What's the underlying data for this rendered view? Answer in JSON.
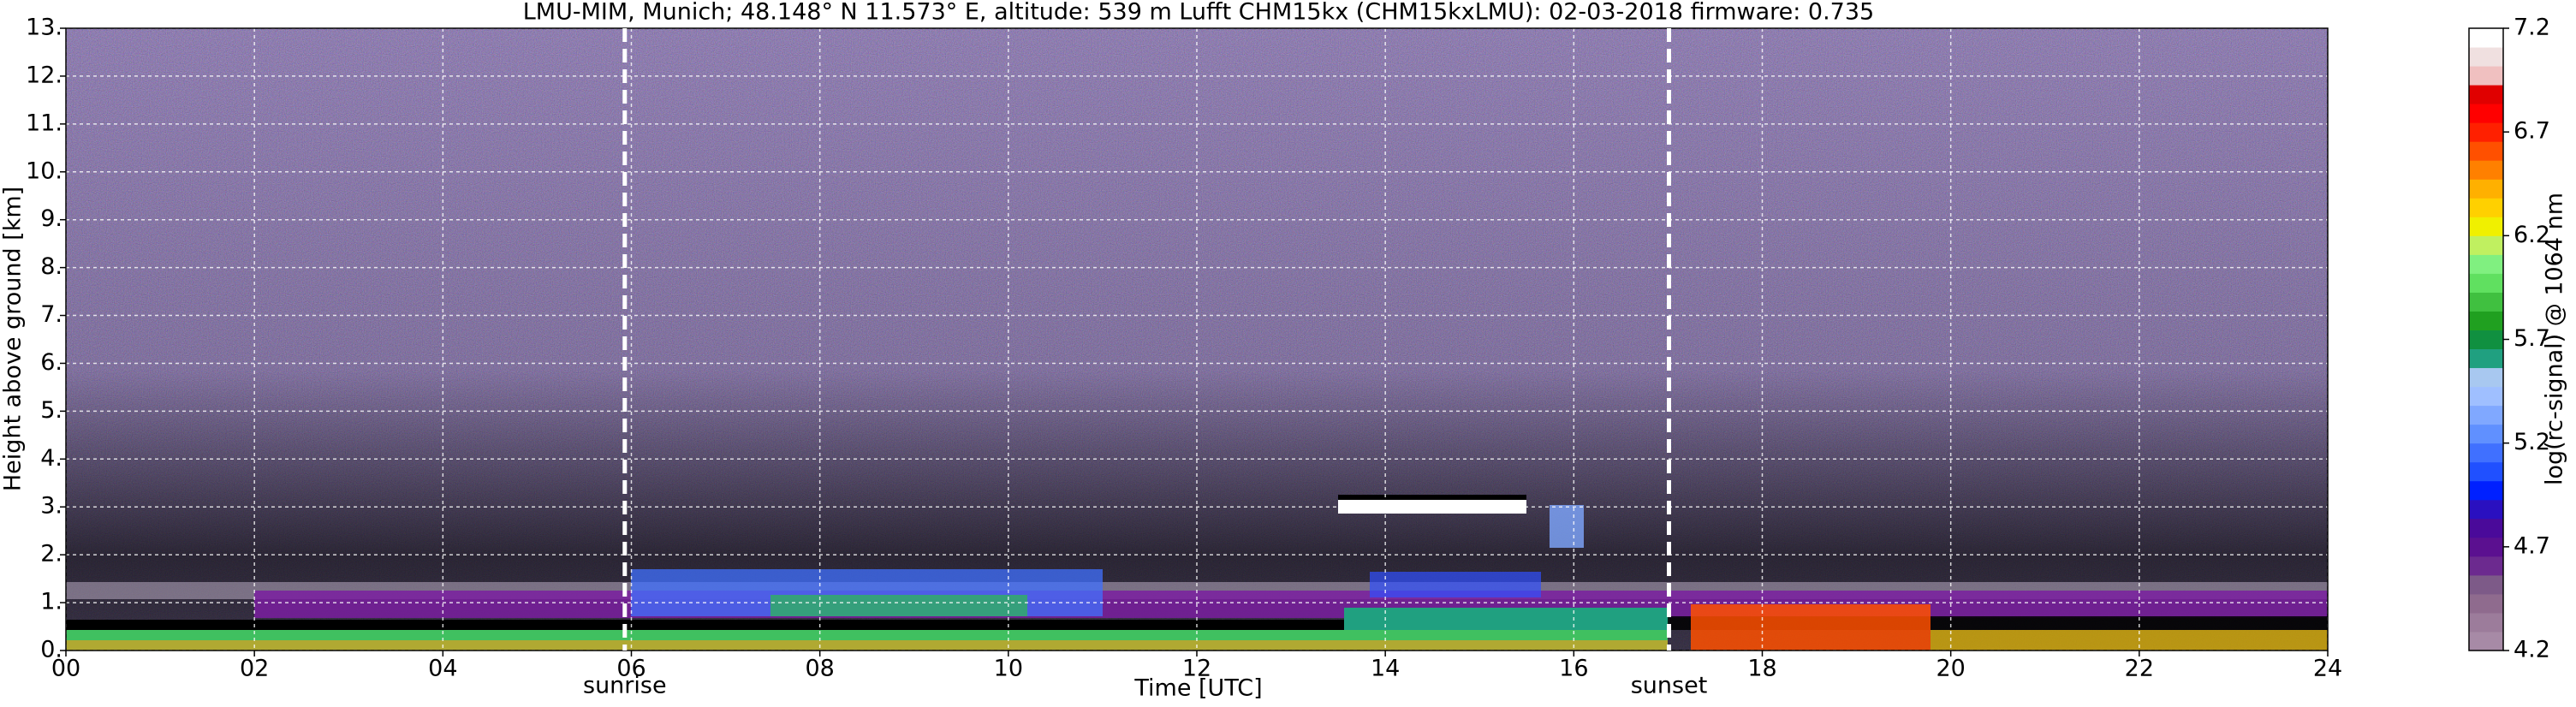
{
  "chart_data": {
    "type": "heatmap",
    "title": "LMU-MIM, Munich; 48.148° N 11.573° E, altitude: 539 m    Lufft CHM15kx (CHM15kxLMU): 02-03-2018    firmware: 0.735",
    "xlabel": "Time [UTC]",
    "ylabel": "Height above ground [km]",
    "xlim": [
      0,
      24
    ],
    "xticks": [
      {
        "value": 0,
        "label": "00"
      },
      {
        "value": 2,
        "label": "02"
      },
      {
        "value": 4,
        "label": "04"
      },
      {
        "value": 6,
        "label": "06"
      },
      {
        "value": 8,
        "label": "08"
      },
      {
        "value": 10,
        "label": "10"
      },
      {
        "value": 12,
        "label": "12"
      },
      {
        "value": 14,
        "label": "14"
      },
      {
        "value": 16,
        "label": "16"
      },
      {
        "value": 18,
        "label": "18"
      },
      {
        "value": 20,
        "label": "20"
      },
      {
        "value": 22,
        "label": "22"
      },
      {
        "value": 24,
        "label": "24"
      }
    ],
    "ylim": [
      0,
      13
    ],
    "yticks": [
      {
        "value": 0,
        "label": "0."
      },
      {
        "value": 1,
        "label": "1."
      },
      {
        "value": 2,
        "label": "2."
      },
      {
        "value": 3,
        "label": "3."
      },
      {
        "value": 4,
        "label": "4."
      },
      {
        "value": 5,
        "label": "5."
      },
      {
        "value": 6,
        "label": "6."
      },
      {
        "value": 7,
        "label": "7."
      },
      {
        "value": 8,
        "label": "8."
      },
      {
        "value": 9,
        "label": "9."
      },
      {
        "value": 10,
        "label": "10."
      },
      {
        "value": 11,
        "label": "11."
      },
      {
        "value": 12,
        "label": "12."
      },
      {
        "value": 13,
        "label": "13."
      }
    ],
    "grid": true,
    "annotations": [
      {
        "label": "sunrise",
        "x": 5.93
      },
      {
        "label": "sunset",
        "x": 17.01
      }
    ],
    "colorbar": {
      "label": "log(rc-signal) @ 1064 nm",
      "lim": [
        4.2,
        7.2
      ],
      "ticks": [
        4.2,
        4.7,
        5.2,
        5.7,
        6.2,
        6.7,
        7.2
      ],
      "colors": [
        "#a78aa6",
        "#9c7c9b",
        "#8f6b8e",
        "#7d5a88",
        "#6c2a8f",
        "#5b1090",
        "#4a0a9a",
        "#2a10c0",
        "#0020ff",
        "#2050ff",
        "#4070ff",
        "#6090ff",
        "#80a8ff",
        "#9fbfff",
        "#a8c8f0",
        "#20a080",
        "#109040",
        "#20a020",
        "#40c040",
        "#60e060",
        "#80f080",
        "#c0f060",
        "#f0f000",
        "#ffd000",
        "#ffb000",
        "#ff8000",
        "#ff5000",
        "#ff2000",
        "#ff0000",
        "#e00000",
        "#f0c0c0",
        "#f0e0e0",
        "#ffffff"
      ]
    }
  }
}
